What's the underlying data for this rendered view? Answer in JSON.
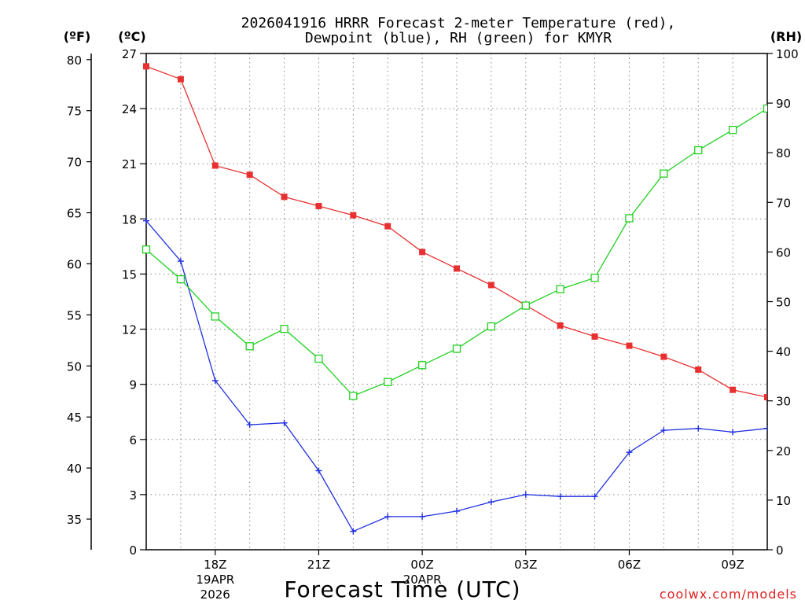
{
  "chart_data": {
    "type": "line",
    "title_line1": "2026041916 HRRR Forecast 2-meter Temperature (red),",
    "title_line2": "Dewpoint (blue), RH (green) for KMYR",
    "xlabel": "Forecast Time (UTC)",
    "credit": "coolwx.com/models",
    "units": {
      "left_f": "(ºF)",
      "left_c": "(ºC)",
      "right": "(RH)"
    },
    "colors": {
      "temperature": "#e83030",
      "dewpoint": "#2030e0",
      "rh": "#20d020"
    },
    "x_hours": [
      0,
      1,
      2,
      3,
      4,
      5,
      6,
      7,
      8,
      9,
      10,
      11,
      12,
      13,
      14,
      15,
      16,
      17,
      18
    ],
    "x_ticks": [
      {
        "hour": 2,
        "label": "18Z",
        "sub1": "19APR",
        "sub2": "2026"
      },
      {
        "hour": 5,
        "label": "21Z",
        "sub1": "",
        "sub2": ""
      },
      {
        "hour": 8,
        "label": "00Z",
        "sub1": "20APR",
        "sub2": ""
      },
      {
        "hour": 11,
        "label": "03Z",
        "sub1": "",
        "sub2": ""
      },
      {
        "hour": 14,
        "label": "06Z",
        "sub1": "",
        "sub2": ""
      },
      {
        "hour": 17,
        "label": "09Z",
        "sub1": "",
        "sub2": ""
      }
    ],
    "celsius_ticks": [
      "0",
      "3",
      "6",
      "9",
      "12",
      "15",
      "18",
      "21",
      "24",
      "27"
    ],
    "fahrenheit_ticks": [
      "35",
      "40",
      "45",
      "50",
      "55",
      "60",
      "65",
      "70",
      "75",
      "80"
    ],
    "rh_ticks": [
      "0",
      "10",
      "20",
      "30",
      "40",
      "50",
      "60",
      "70",
      "80",
      "90",
      "100"
    ],
    "ylim_c": [
      0,
      27
    ],
    "ylim_rh": [
      0,
      100
    ],
    "series": [
      {
        "name": "Temperature (°C)",
        "key": "temperature",
        "marker": "filled-square",
        "values": [
          26.3,
          25.6,
          20.9,
          20.4,
          19.2,
          18.7,
          18.2,
          17.6,
          16.2,
          15.3,
          14.4,
          13.3,
          12.2,
          11.6,
          11.1,
          10.5,
          9.8,
          8.7,
          8.3
        ]
      },
      {
        "name": "Dewpoint (°C)",
        "key": "dewpoint",
        "marker": "plus",
        "values": [
          17.9,
          15.7,
          9.2,
          6.8,
          6.9,
          4.3,
          1.0,
          1.8,
          1.8,
          2.1,
          2.6,
          3.0,
          2.9,
          2.9,
          5.3,
          6.5,
          6.6,
          6.4,
          6.6
        ]
      },
      {
        "name": "RH (%)",
        "key": "rh",
        "marker": "open-square",
        "values": [
          60.5,
          54.5,
          47.0,
          41.0,
          44.5,
          38.5,
          31.0,
          33.8,
          37.2,
          40.5,
          45.0,
          49.2,
          52.5,
          54.8,
          66.8,
          75.8,
          80.5,
          84.6,
          88.9
        ]
      }
    ]
  }
}
